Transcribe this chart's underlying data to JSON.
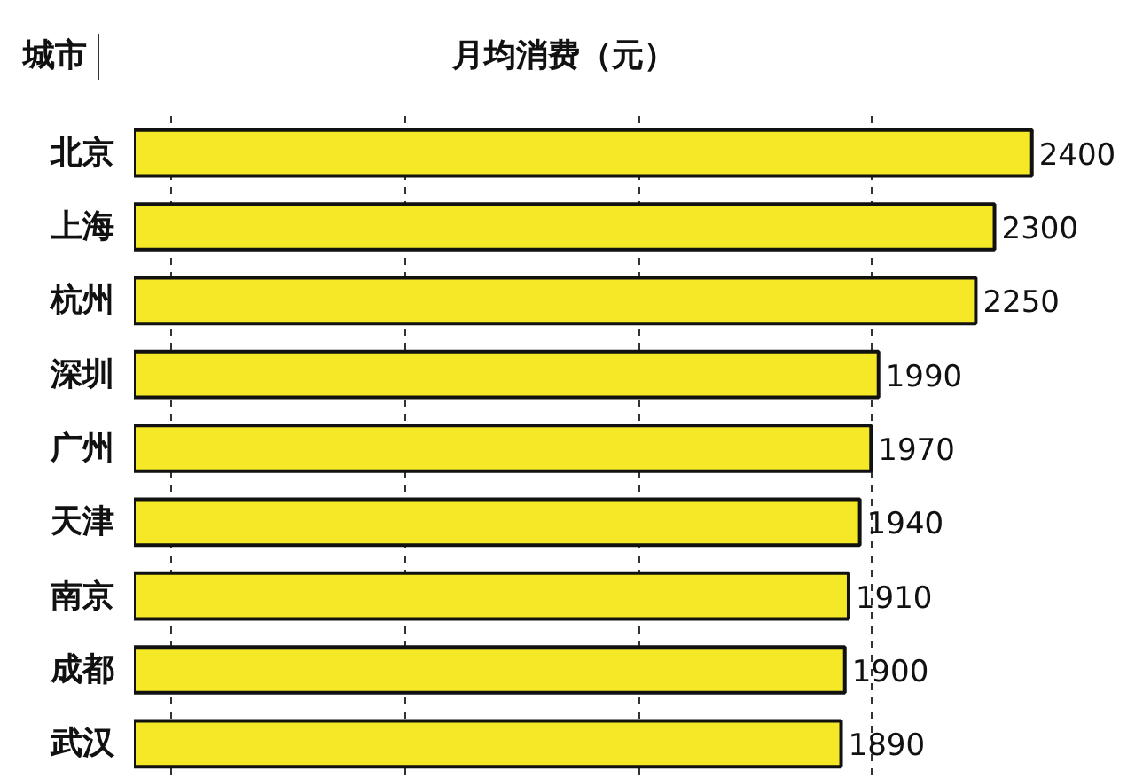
{
  "chart_data": {
    "type": "bar",
    "orientation": "horizontal",
    "title": "月均消费（元）",
    "ylabel": "城市",
    "categories": [
      "北京",
      "上海",
      "杭州",
      "深圳",
      "广州",
      "天津",
      "南京",
      "成都",
      "武汉"
    ],
    "values": [
      2400,
      2300,
      2250,
      1990,
      1970,
      1940,
      1910,
      1900,
      1890
    ],
    "color": "#f5e827",
    "data_labels": true,
    "grid": "x",
    "tick_labels": "y",
    "xticks": [
      {
        "value": 100,
        "label": null
      },
      {
        "value": 725,
        "label": null
      },
      {
        "value": 1350,
        "label": null
      },
      {
        "value": 1970,
        "label": null
      }
    ]
  }
}
